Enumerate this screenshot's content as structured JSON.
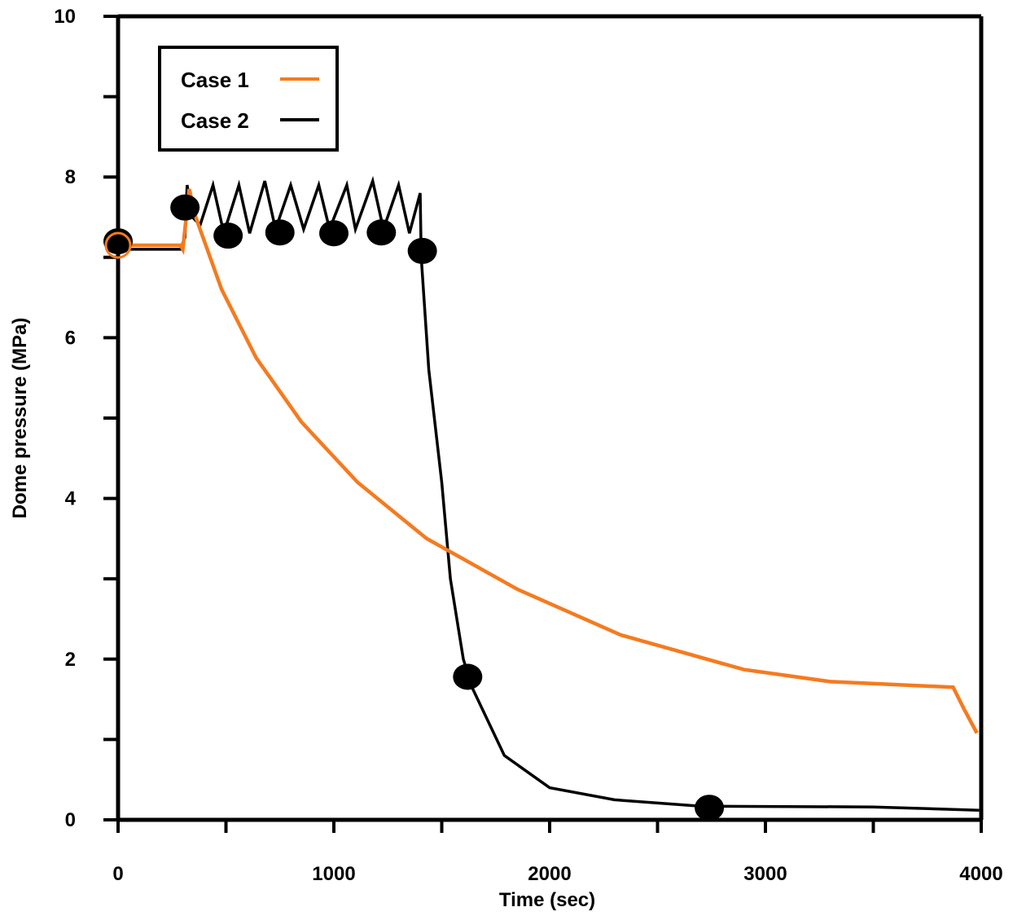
{
  "chart_data": {
    "type": "line",
    "title": "",
    "xlabel": "Time (sec)",
    "ylabel": "Dome pressure (MPa)",
    "xlim": [
      0,
      4000
    ],
    "ylim": [
      0,
      10
    ],
    "x_ticks": [
      0,
      1000,
      2000,
      3000,
      4000
    ],
    "x_minor_ticks": [
      500,
      1500,
      2500,
      3500
    ],
    "y_ticks": [
      0,
      2,
      4,
      6,
      8,
      10
    ],
    "y_minor_ticks": [
      1,
      3,
      5,
      7,
      9
    ],
    "grid": false,
    "legend_position": "top-left",
    "series": [
      {
        "name": "Case 1",
        "color": "#f47b20",
        "x": [
          0,
          290,
          300,
          330,
          360,
          400,
          480,
          640,
          850,
          1110,
          1430,
          1850,
          2330,
          2900,
          3300,
          3870,
          3920,
          3980
        ],
        "y": [
          7.15,
          7.15,
          7.1,
          7.85,
          7.5,
          7.2,
          6.6,
          5.75,
          4.95,
          4.2,
          3.5,
          2.87,
          2.3,
          1.87,
          1.72,
          1.65,
          1.38,
          1.08
        ],
        "markers": [
          {
            "x": 0,
            "y": 7.15
          }
        ]
      },
      {
        "name": "Case 2",
        "color": "#000000",
        "x": [
          0,
          290,
          310,
          320,
          345,
          380,
          440,
          490,
          560,
          610,
          680,
          730,
          800,
          860,
          930,
          980,
          1060,
          1100,
          1180,
          1230,
          1300,
          1350,
          1400,
          1405,
          1440,
          1500,
          1540,
          1600,
          1640,
          1790,
          2000,
          2300,
          2700,
          3500,
          3990
        ],
        "y": [
          7.1,
          7.1,
          7.25,
          7.9,
          7.5,
          7.4,
          7.9,
          7.3,
          7.9,
          7.3,
          7.95,
          7.35,
          7.9,
          7.35,
          7.9,
          7.35,
          7.9,
          7.35,
          7.95,
          7.35,
          7.9,
          7.3,
          7.8,
          7.0,
          5.6,
          4.2,
          3.0,
          2.0,
          1.65,
          0.8,
          0.4,
          0.25,
          0.17,
          0.16,
          0.12
        ],
        "markers": [
          {
            "x": 0,
            "y": 7.2
          },
          {
            "x": 310,
            "y": 7.62
          },
          {
            "x": 510,
            "y": 7.27
          },
          {
            "x": 750,
            "y": 7.31
          },
          {
            "x": 1000,
            "y": 7.3
          },
          {
            "x": 1220,
            "y": 7.31
          },
          {
            "x": 1410,
            "y": 7.08
          },
          {
            "x": 1620,
            "y": 1.78
          },
          {
            "x": 2740,
            "y": 0.15
          }
        ]
      }
    ]
  }
}
